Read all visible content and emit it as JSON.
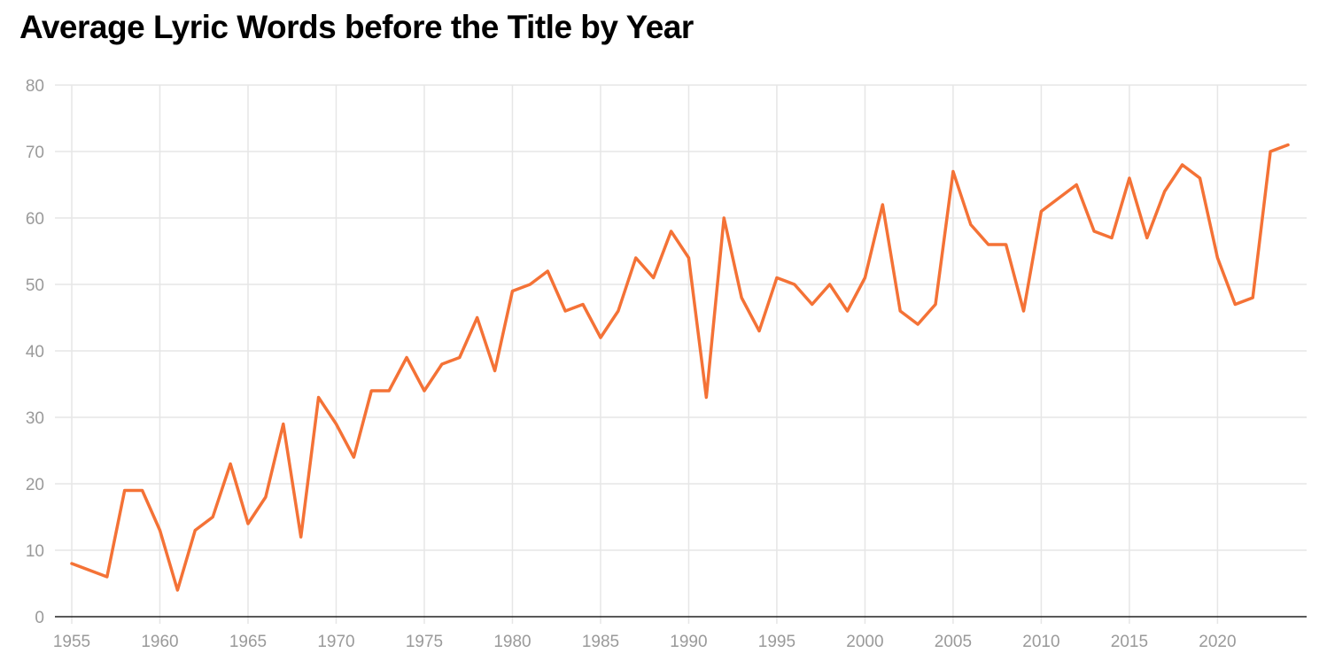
{
  "chart_data": {
    "type": "line",
    "title": "Average Lyric Words before the Title by Year",
    "xlabel": "",
    "ylabel": "",
    "xlim": [
      1955,
      2024
    ],
    "ylim": [
      0,
      80
    ],
    "x_ticks": [
      1955,
      1960,
      1965,
      1970,
      1975,
      1980,
      1985,
      1990,
      1995,
      2000,
      2005,
      2010,
      2015,
      2020
    ],
    "y_ticks": [
      0,
      10,
      20,
      30,
      40,
      50,
      60,
      70,
      80
    ],
    "grid": true,
    "legend": "none",
    "series": [
      {
        "color": "#f47236",
        "points": [
          [
            1955,
            8
          ],
          [
            1957,
            6
          ],
          [
            1958,
            19
          ],
          [
            1959,
            19
          ],
          [
            1960,
            13
          ],
          [
            1961,
            4
          ],
          [
            1962,
            13
          ],
          [
            1963,
            15
          ],
          [
            1964,
            23
          ],
          [
            1965,
            14
          ],
          [
            1966,
            18
          ],
          [
            1967,
            29
          ],
          [
            1968,
            12
          ],
          [
            1969,
            33
          ],
          [
            1970,
            29
          ],
          [
            1971,
            24
          ],
          [
            1972,
            34
          ],
          [
            1973,
            34
          ],
          [
            1974,
            39
          ],
          [
            1975,
            34
          ],
          [
            1976,
            38
          ],
          [
            1977,
            39
          ],
          [
            1978,
            45
          ],
          [
            1979,
            37
          ],
          [
            1980,
            49
          ],
          [
            1981,
            50
          ],
          [
            1982,
            52
          ],
          [
            1983,
            46
          ],
          [
            1984,
            47
          ],
          [
            1985,
            42
          ],
          [
            1986,
            46
          ],
          [
            1987,
            54
          ],
          [
            1988,
            51
          ],
          [
            1989,
            58
          ],
          [
            1990,
            54
          ],
          [
            1991,
            33
          ],
          [
            1992,
            60
          ],
          [
            1993,
            48
          ],
          [
            1994,
            43
          ],
          [
            1995,
            51
          ],
          [
            1996,
            50
          ],
          [
            1997,
            47
          ],
          [
            1998,
            50
          ],
          [
            1999,
            46
          ],
          [
            2000,
            51
          ],
          [
            2001,
            62
          ],
          [
            2002,
            46
          ],
          [
            2003,
            44
          ],
          [
            2004,
            47
          ],
          [
            2005,
            67
          ],
          [
            2006,
            59
          ],
          [
            2007,
            56
          ],
          [
            2008,
            56
          ],
          [
            2009,
            46
          ],
          [
            2010,
            61
          ],
          [
            2012,
            65
          ],
          [
            2013,
            58
          ],
          [
            2014,
            57
          ],
          [
            2015,
            66
          ],
          [
            2016,
            57
          ],
          [
            2017,
            64
          ],
          [
            2018,
            68
          ],
          [
            2019,
            66
          ],
          [
            2020,
            54
          ],
          [
            2021,
            47
          ],
          [
            2022,
            48
          ],
          [
            2023,
            70
          ],
          [
            2024,
            71
          ]
        ]
      }
    ]
  }
}
